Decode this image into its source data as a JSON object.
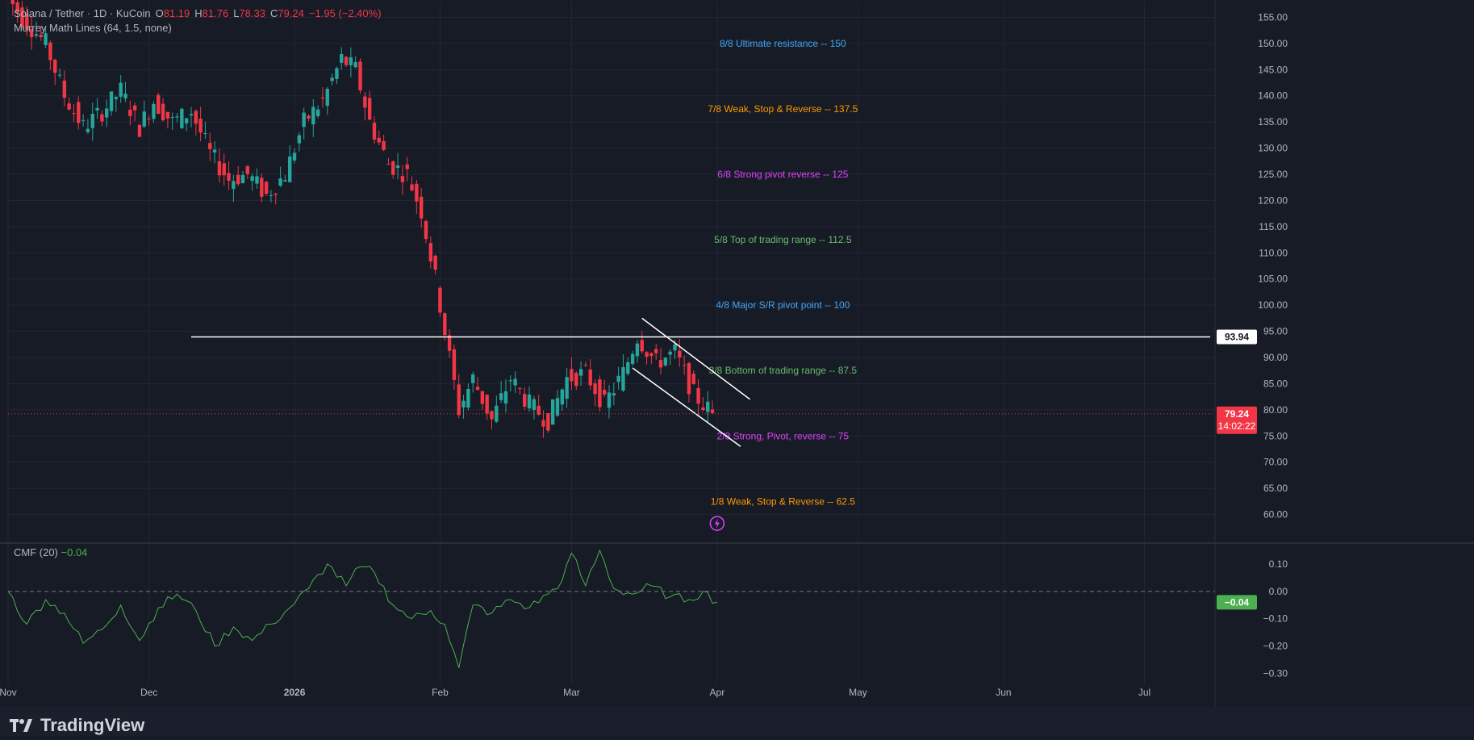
{
  "legend": {
    "symbol": "Solana / Tether · 1D · KuCoin",
    "open_label": "O",
    "open": "81.19",
    "high_label": "H",
    "high": "81.76",
    "low_label": "L",
    "low": "78.33",
    "close_label": "C",
    "close": "79.24",
    "change": "−1.95 (−2.40%)",
    "indicator": "Murrey Math Lines (64, 1.5, none)"
  },
  "cmf_legend": {
    "name": "CMF (20)",
    "value": "−0.04"
  },
  "brand": {
    "name": "TradingView"
  },
  "colors": {
    "background": "#171b26",
    "up": "#26a69a",
    "down": "#f23645",
    "cmf_line": "#4caf50",
    "murrey_blue": "#42a5f5",
    "murrey_orange": "#ff9800",
    "murrey_magenta": "#e040fb",
    "murrey_green": "#66bb6a",
    "horizontal_line": "#ffffff",
    "channel": "#ffffff"
  },
  "chart_data": [
    {
      "type": "candlestick",
      "title": "Solana / Tether · 1D · KuCoin",
      "ylim": [
        55,
        158
      ],
      "y_ticks": [
        "155.00",
        "150.00",
        "145.00",
        "140.00",
        "135.00",
        "130.00",
        "125.00",
        "120.00",
        "115.00",
        "110.00",
        "105.00",
        "100.00",
        "95.00",
        "90.00",
        "85.00",
        "80.00",
        "75.00",
        "70.00",
        "65.00",
        "60.00"
      ],
      "x_ticks": [
        "Nov",
        "Dec",
        "2026",
        "Feb",
        "Mar",
        "Apr",
        "May",
        "Jun",
        "Jul"
      ],
      "x_tick_dates": [
        "2025-11-01",
        "2025-12-01",
        "2026-01-01",
        "2026-02-01",
        "2026-03-01",
        "2026-04-01",
        "2026-05-01",
        "2026-06-01",
        "2026-07-01"
      ],
      "date_range": [
        "2025-11-01",
        "2026-07-15"
      ],
      "close_path": [
        {
          "date": "2025-11-01",
          "value": 160
        },
        {
          "date": "2025-11-05",
          "value": 155
        },
        {
          "date": "2025-11-10",
          "value": 150
        },
        {
          "date": "2025-11-14",
          "value": 140
        },
        {
          "date": "2025-11-18",
          "value": 134
        },
        {
          "date": "2025-11-22",
          "value": 137
        },
        {
          "date": "2025-11-26",
          "value": 141
        },
        {
          "date": "2025-11-30",
          "value": 134
        },
        {
          "date": "2025-12-03",
          "value": 139
        },
        {
          "date": "2025-12-07",
          "value": 135
        },
        {
          "date": "2025-12-11",
          "value": 137
        },
        {
          "date": "2025-12-15",
          "value": 129
        },
        {
          "date": "2025-12-19",
          "value": 124
        },
        {
          "date": "2025-12-23",
          "value": 125
        },
        {
          "date": "2025-12-27",
          "value": 121
        },
        {
          "date": "2025-12-31",
          "value": 125
        },
        {
          "date": "2026-01-04",
          "value": 135
        },
        {
          "date": "2026-01-08",
          "value": 139
        },
        {
          "date": "2026-01-12",
          "value": 147
        },
        {
          "date": "2026-01-15",
          "value": 145
        },
        {
          "date": "2026-01-18",
          "value": 135
        },
        {
          "date": "2026-01-22",
          "value": 127
        },
        {
          "date": "2026-01-26",
          "value": 125
        },
        {
          "date": "2026-01-29",
          "value": 118
        },
        {
          "date": "2026-02-01",
          "value": 105
        },
        {
          "date": "2026-02-04",
          "value": 90
        },
        {
          "date": "2026-02-06",
          "value": 80
        },
        {
          "date": "2026-02-09",
          "value": 86
        },
        {
          "date": "2026-02-13",
          "value": 78
        },
        {
          "date": "2026-02-17",
          "value": 86
        },
        {
          "date": "2026-02-21",
          "value": 81
        },
        {
          "date": "2026-02-25",
          "value": 78
        },
        {
          "date": "2026-03-01",
          "value": 86
        },
        {
          "date": "2026-03-05",
          "value": 87
        },
        {
          "date": "2026-03-09",
          "value": 81
        },
        {
          "date": "2026-03-13",
          "value": 87
        },
        {
          "date": "2026-03-16",
          "value": 94
        },
        {
          "date": "2026-03-20",
          "value": 89
        },
        {
          "date": "2026-03-24",
          "value": 91
        },
        {
          "date": "2026-03-28",
          "value": 83
        },
        {
          "date": "2026-04-01",
          "value": 79.24
        }
      ],
      "last_price": "79.24",
      "countdown": "14:02:22",
      "horizontal_line": {
        "value": 93.94,
        "label": "93.94",
        "start": "2025-12-10",
        "end": "2026-07-15"
      },
      "channel": [
        {
          "start_date": "2026-03-16",
          "start_value": 97.5,
          "end_date": "2026-04-08",
          "end_value": 82
        },
        {
          "start_date": "2026-03-14",
          "start_value": 88,
          "end_date": "2026-04-06",
          "end_value": 73
        }
      ],
      "murrey_lines": [
        {
          "value": 150,
          "text": "8/8 Ultimate resistance --  150",
          "color": "#42a5f5"
        },
        {
          "value": 137.5,
          "text": "7/8 Weak, Stop & Reverse --  137.5",
          "color": "#ff9800"
        },
        {
          "value": 125,
          "text": "6/8 Strong pivot reverse --  125",
          "color": "#e040fb"
        },
        {
          "value": 112.5,
          "text": "5/8 Top of trading range --  112.5",
          "color": "#66bb6a"
        },
        {
          "value": 100,
          "text": "4/8 Major S/R pivot point --  100",
          "color": "#42a5f5"
        },
        {
          "value": 87.5,
          "text": "3/8 Bottom of trading range --  87.5",
          "color": "#66bb6a"
        },
        {
          "value": 75,
          "text": "2/8 Strong, Pivot, reverse --  75",
          "color": "#e040fb"
        },
        {
          "value": 62.5,
          "text": "1/8 Weak, Stop & Reverse --  62.5",
          "color": "#ff9800"
        }
      ]
    },
    {
      "type": "line",
      "title": "CMF (20)",
      "ylim": [
        -0.34,
        0.15
      ],
      "y_ticks": [
        "0.10",
        "0.00",
        "−0.10",
        "−0.20",
        "−0.30"
      ],
      "zero_line": true,
      "current_value": "−0.04",
      "series": [
        {
          "points": [
            {
              "date": "2025-11-01",
              "value": 0.0
            },
            {
              "date": "2025-11-05",
              "value": -0.12
            },
            {
              "date": "2025-11-09",
              "value": -0.03
            },
            {
              "date": "2025-11-13",
              "value": -0.08
            },
            {
              "date": "2025-11-17",
              "value": -0.19
            },
            {
              "date": "2025-11-21",
              "value": -0.14
            },
            {
              "date": "2025-11-25",
              "value": -0.05
            },
            {
              "date": "2025-11-29",
              "value": -0.18
            },
            {
              "date": "2025-12-03",
              "value": -0.06
            },
            {
              "date": "2025-12-07",
              "value": -0.01
            },
            {
              "date": "2025-12-11",
              "value": -0.07
            },
            {
              "date": "2025-12-15",
              "value": -0.2
            },
            {
              "date": "2025-12-19",
              "value": -0.13
            },
            {
              "date": "2025-12-23",
              "value": -0.18
            },
            {
              "date": "2025-12-27",
              "value": -0.12
            },
            {
              "date": "2025-12-31",
              "value": -0.06
            },
            {
              "date": "2026-01-04",
              "value": 0.01
            },
            {
              "date": "2026-01-08",
              "value": 0.1
            },
            {
              "date": "2026-01-12",
              "value": 0.02
            },
            {
              "date": "2026-01-15",
              "value": 0.09
            },
            {
              "date": "2026-01-18",
              "value": 0.07
            },
            {
              "date": "2026-01-22",
              "value": -0.05
            },
            {
              "date": "2026-01-26",
              "value": -0.1
            },
            {
              "date": "2026-01-30",
              "value": -0.07
            },
            {
              "date": "2026-02-02",
              "value": -0.12
            },
            {
              "date": "2026-02-05",
              "value": -0.28
            },
            {
              "date": "2026-02-08",
              "value": -0.05
            },
            {
              "date": "2026-02-12",
              "value": -0.08
            },
            {
              "date": "2026-02-16",
              "value": -0.03
            },
            {
              "date": "2026-02-20",
              "value": -0.06
            },
            {
              "date": "2026-02-24",
              "value": -0.01
            },
            {
              "date": "2026-02-27",
              "value": 0.04
            },
            {
              "date": "2026-03-01",
              "value": 0.14
            },
            {
              "date": "2026-03-04",
              "value": 0.02
            },
            {
              "date": "2026-03-07",
              "value": 0.15
            },
            {
              "date": "2026-03-10",
              "value": 0.01
            },
            {
              "date": "2026-03-14",
              "value": -0.01
            },
            {
              "date": "2026-03-18",
              "value": 0.02
            },
            {
              "date": "2026-03-22",
              "value": -0.02
            },
            {
              "date": "2026-03-26",
              "value": -0.03
            },
            {
              "date": "2026-03-29",
              "value": 0.0
            },
            {
              "date": "2026-04-01",
              "value": -0.04
            }
          ]
        }
      ]
    }
  ]
}
